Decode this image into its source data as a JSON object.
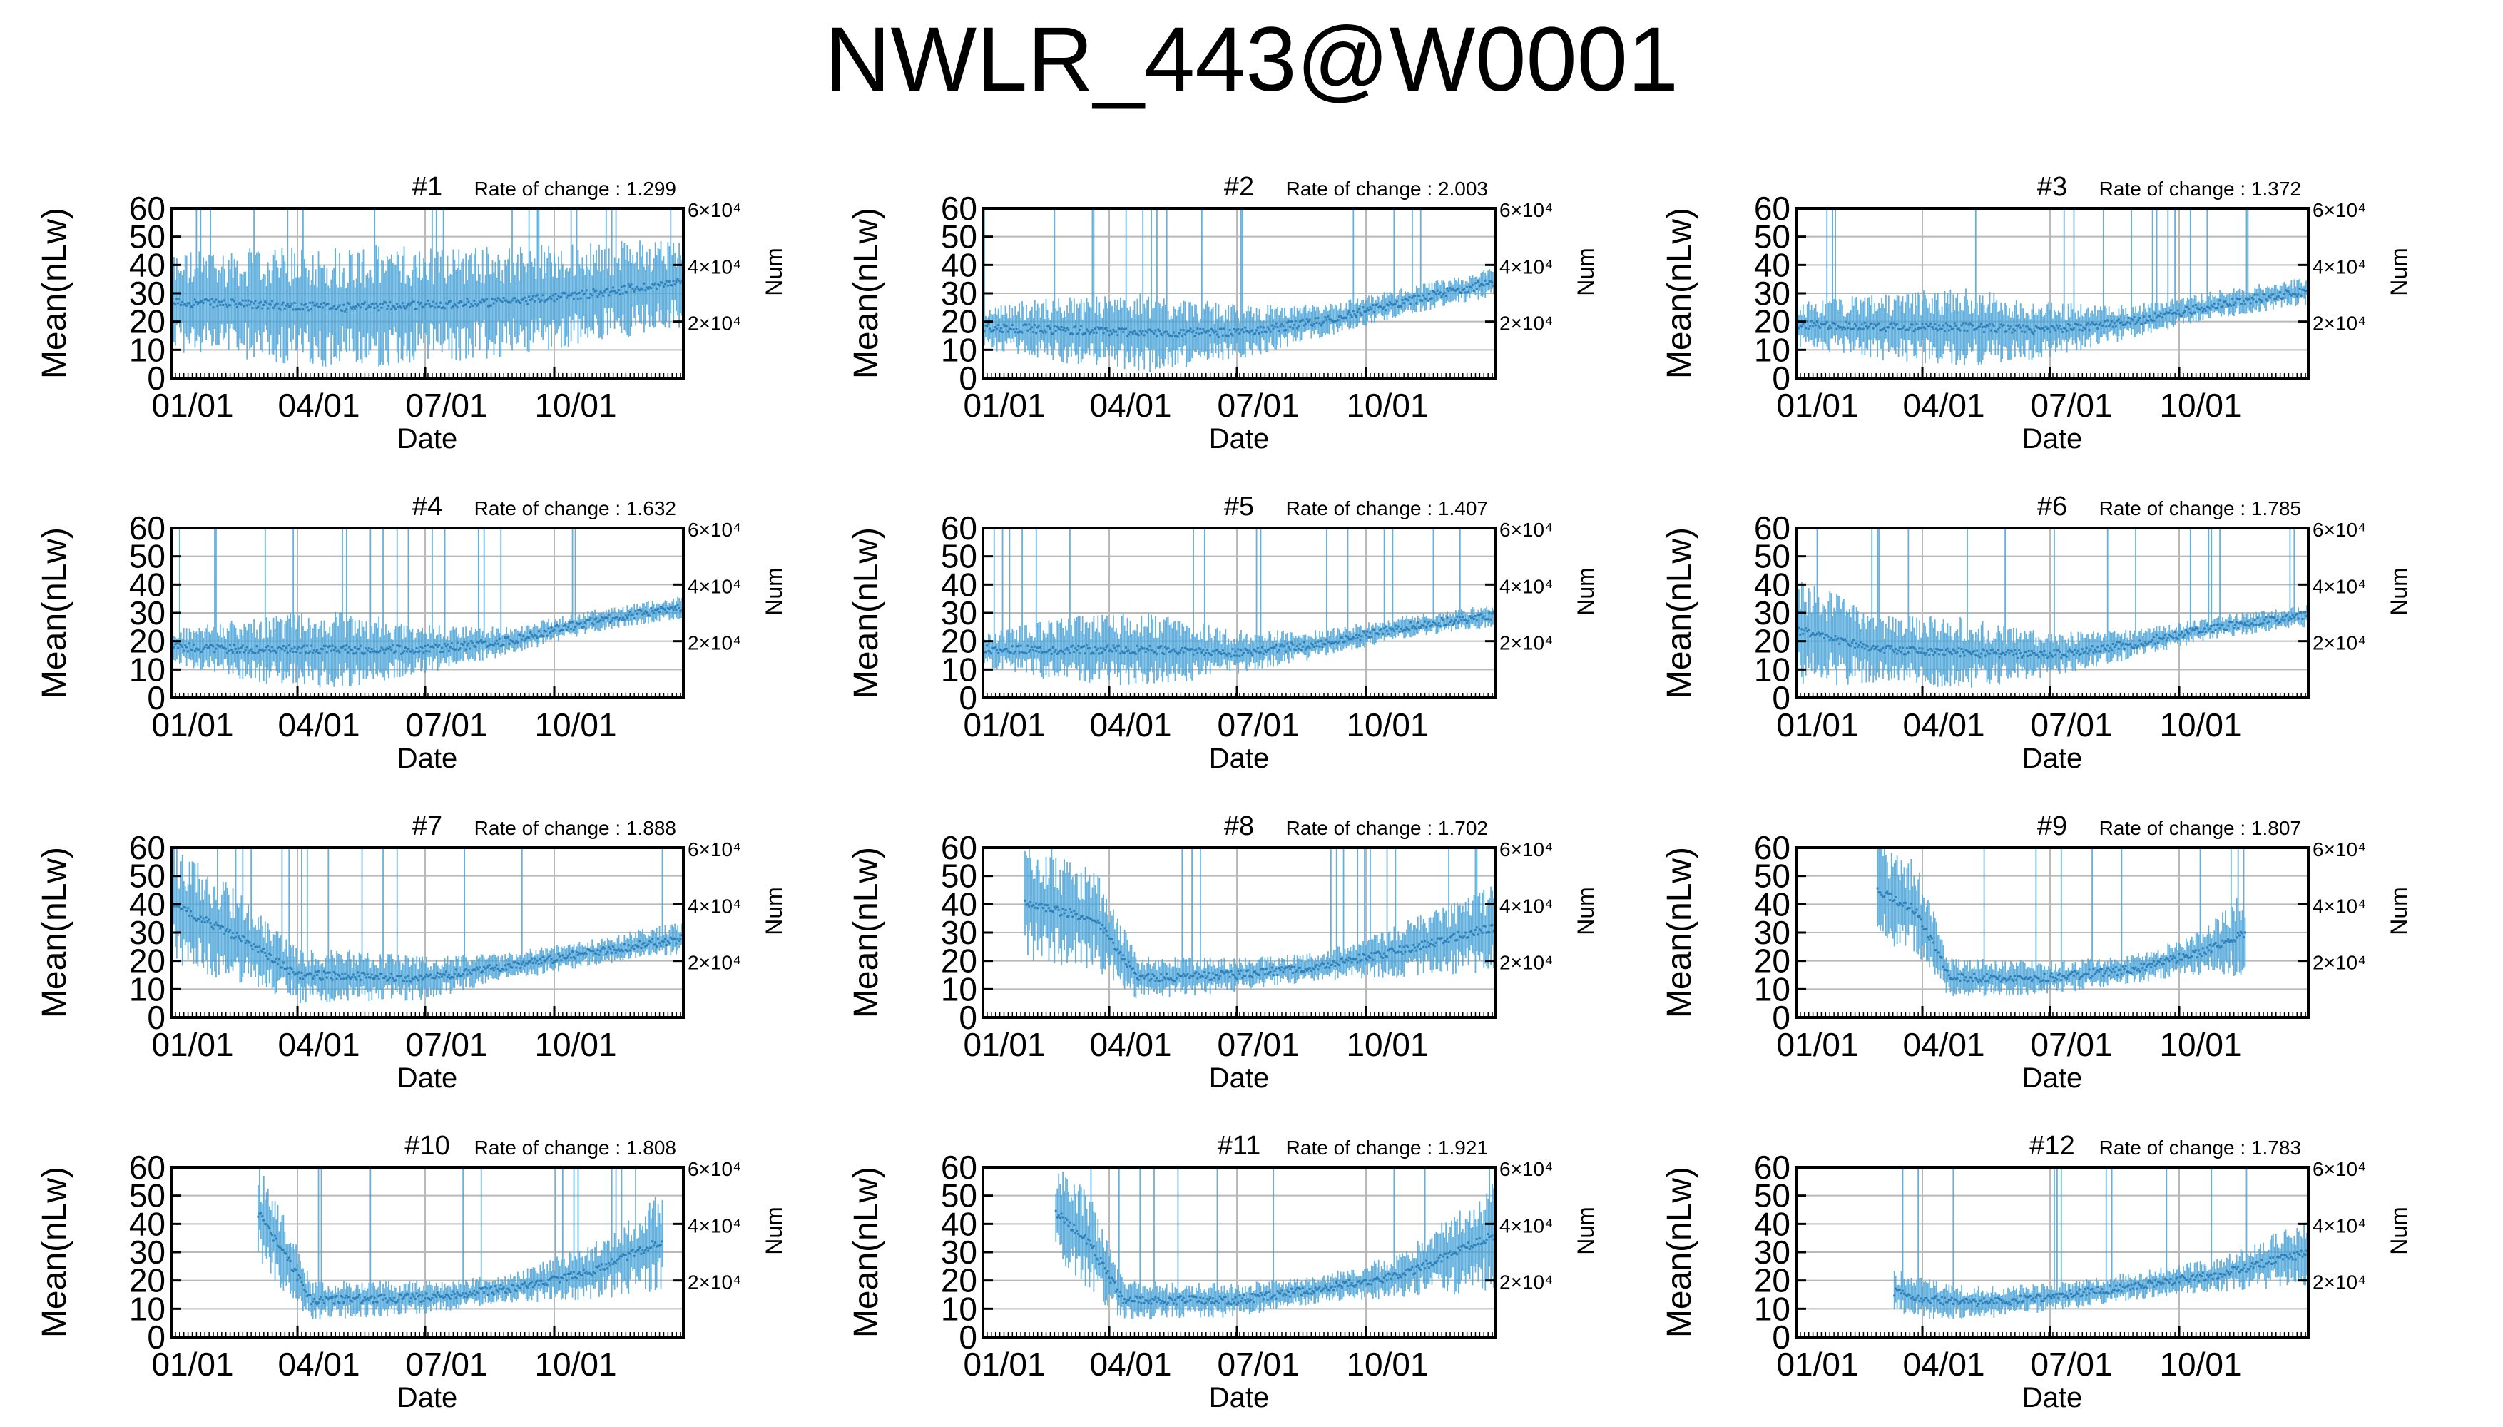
{
  "page": {
    "title": "NWLR_443@W0001"
  },
  "chart_data": [
    {
      "type": "line",
      "title": "#1",
      "rate_label": "Rate of change : 1.299",
      "xlabel": "Date",
      "ylabel": "Mean(nLw)",
      "y2label": "Num",
      "ylim": [
        0,
        60
      ],
      "yticks": [
        0,
        10,
        20,
        30,
        40,
        50,
        60
      ],
      "xticks": [
        "01/01",
        "04/01",
        "07/01",
        "10/01"
      ],
      "y2ticks": [
        {
          "label": "2×10⁴",
          "value": 20000
        },
        {
          "label": "4×10⁴",
          "value": 40000
        },
        {
          "label": "6×10⁴",
          "value": 60000
        }
      ],
      "grid": true,
      "color": "#4aa3d8",
      "profile": {
        "days": [
          0,
          60,
          120,
          180,
          240,
          300,
          365
        ],
        "mean": [
          27,
          26,
          25,
          26,
          27,
          30,
          34
        ],
        "spread": [
          18,
          20,
          22,
          21,
          20,
          18,
          16
        ],
        "start": 0
      }
    },
    {
      "type": "line",
      "title": "#2",
      "rate_label": "Rate of change : 2.003",
      "xlabel": "Date",
      "ylabel": "Mean(nLw)",
      "y2label": "Num",
      "ylim": [
        0,
        60
      ],
      "yticks": [
        0,
        10,
        20,
        30,
        40,
        50,
        60
      ],
      "xticks": [
        "01/01",
        "04/01",
        "07/01",
        "10/01"
      ],
      "y2ticks": [
        {
          "label": "2×10⁴",
          "value": 20000
        },
        {
          "label": "4×10⁴",
          "value": 40000
        },
        {
          "label": "6×10⁴",
          "value": 60000
        }
      ],
      "grid": true,
      "color": "#4aa3d8",
      "profile": {
        "days": [
          0,
          60,
          120,
          180,
          240,
          300,
          365
        ],
        "mean": [
          18,
          17,
          16,
          16,
          20,
          27,
          34
        ],
        "spread": [
          8,
          12,
          14,
          10,
          6,
          5,
          5
        ],
        "start": 0
      }
    },
    {
      "type": "line",
      "title": "#3",
      "rate_label": "Rate of change : 1.372",
      "xlabel": "Date",
      "ylabel": "Mean(nLw)",
      "y2label": "Num",
      "ylim": [
        0,
        60
      ],
      "yticks": [
        0,
        10,
        20,
        30,
        40,
        50,
        60
      ],
      "xticks": [
        "01/01",
        "04/01",
        "07/01",
        "10/01"
      ],
      "y2ticks": [
        {
          "label": "2×10⁴",
          "value": 20000
        },
        {
          "label": "4×10⁴",
          "value": 40000
        },
        {
          "label": "6×10⁴",
          "value": 60000
        }
      ],
      "grid": true,
      "color": "#4aa3d8",
      "profile": {
        "days": [
          0,
          60,
          120,
          180,
          240,
          300,
          365
        ],
        "mean": [
          19,
          18,
          18,
          17,
          20,
          26,
          31
        ],
        "spread": [
          8,
          12,
          14,
          10,
          6,
          5,
          5
        ],
        "start": 0
      }
    },
    {
      "type": "line",
      "title": "#4",
      "rate_label": "Rate of change : 1.632",
      "xlabel": "Date",
      "ylabel": "Mean(nLw)",
      "y2label": "Num",
      "ylim": [
        0,
        60
      ],
      "yticks": [
        0,
        10,
        20,
        30,
        40,
        50,
        60
      ],
      "xticks": [
        "01/01",
        "04/01",
        "07/01",
        "10/01"
      ],
      "y2ticks": [
        {
          "label": "2×10⁴",
          "value": 20000
        },
        {
          "label": "4×10⁴",
          "value": 40000
        },
        {
          "label": "6×10⁴",
          "value": 60000
        }
      ],
      "grid": true,
      "color": "#4aa3d8",
      "profile": {
        "days": [
          0,
          60,
          120,
          180,
          240,
          300,
          365
        ],
        "mean": [
          18,
          17,
          17,
          17,
          20,
          27,
          32
        ],
        "spread": [
          6,
          12,
          14,
          9,
          5,
          4,
          4
        ],
        "start": 0
      }
    },
    {
      "type": "line",
      "title": "#5",
      "rate_label": "Rate of change : 1.407",
      "xlabel": "Date",
      "ylabel": "Mean(nLw)",
      "y2label": "Num",
      "ylim": [
        0,
        60
      ],
      "yticks": [
        0,
        10,
        20,
        30,
        40,
        50,
        60
      ],
      "xticks": [
        "01/01",
        "04/01",
        "07/01",
        "10/01"
      ],
      "y2ticks": [
        {
          "label": "2×10⁴",
          "value": 20000
        },
        {
          "label": "4×10⁴",
          "value": 40000
        },
        {
          "label": "6×10⁴",
          "value": 60000
        }
      ],
      "grid": true,
      "color": "#4aa3d8",
      "profile": {
        "days": [
          0,
          60,
          120,
          180,
          240,
          300,
          365
        ],
        "mean": [
          17,
          17,
          17,
          16,
          19,
          25,
          29
        ],
        "spread": [
          6,
          12,
          13,
          8,
          5,
          4,
          4
        ],
        "start": 0
      }
    },
    {
      "type": "line",
      "title": "#6",
      "rate_label": "Rate of change : 1.785",
      "xlabel": "Date",
      "ylabel": "Mean(nLw)",
      "y2label": "Num",
      "ylim": [
        0,
        60
      ],
      "yticks": [
        0,
        10,
        20,
        30,
        40,
        50,
        60
      ],
      "xticks": [
        "01/01",
        "04/01",
        "07/01",
        "10/01"
      ],
      "y2ticks": [
        {
          "label": "2×10⁴",
          "value": 20000
        },
        {
          "label": "4×10⁴",
          "value": 40000
        },
        {
          "label": "6×10⁴",
          "value": 60000
        }
      ],
      "grid": true,
      "color": "#4aa3d8",
      "profile": {
        "days": [
          0,
          60,
          120,
          180,
          240,
          300,
          365
        ],
        "mean": [
          24,
          17,
          16,
          15,
          19,
          25,
          29
        ],
        "spread": [
          20,
          12,
          13,
          8,
          5,
          4,
          4
        ],
        "start": 0
      }
    },
    {
      "type": "line",
      "title": "#7",
      "rate_label": "Rate of change : 1.888",
      "xlabel": "Date",
      "ylabel": "Mean(nLw)",
      "y2label": "Num",
      "ylim": [
        0,
        60
      ],
      "yticks": [
        0,
        10,
        20,
        30,
        40,
        50,
        60
      ],
      "xticks": [
        "01/01",
        "04/01",
        "07/01",
        "10/01"
      ],
      "y2ticks": [
        {
          "label": "2×10⁴",
          "value": 20000
        },
        {
          "label": "4×10⁴",
          "value": 40000
        },
        {
          "label": "6×10⁴",
          "value": 60000
        }
      ],
      "grid": true,
      "color": "#4aa3d8",
      "profile": {
        "days": [
          0,
          50,
          90,
          180,
          240,
          300,
          365
        ],
        "mean": [
          40,
          28,
          15,
          14,
          18,
          23,
          28
        ],
        "spread": [
          22,
          16,
          10,
          8,
          5,
          5,
          6
        ],
        "start": 0
      }
    },
    {
      "type": "line",
      "title": "#8",
      "rate_label": "Rate of change : 1.702",
      "xlabel": "Date",
      "ylabel": "Mean(nLw)",
      "y2label": "Num",
      "ylim": [
        0,
        60
      ],
      "yticks": [
        0,
        10,
        20,
        30,
        40,
        50,
        60
      ],
      "xticks": [
        "01/01",
        "04/01",
        "07/01",
        "10/01"
      ],
      "y2ticks": [
        {
          "label": "2×10⁴",
          "value": 20000
        },
        {
          "label": "4×10⁴",
          "value": 40000
        },
        {
          "label": "6×10⁴",
          "value": 60000
        }
      ],
      "grid": true,
      "color": "#4aa3d8",
      "profile": {
        "days": [
          30,
          80,
          110,
          180,
          240,
          300,
          365
        ],
        "mean": [
          40,
          35,
          14,
          15,
          18,
          24,
          32
        ],
        "spread": [
          20,
          18,
          8,
          6,
          5,
          10,
          16
        ],
        "start": 30
      }
    },
    {
      "type": "line",
      "title": "#9",
      "rate_label": "Rate of change : 1.807",
      "xlabel": "Date",
      "ylabel": "Mean(nLw)",
      "y2label": "Num",
      "ylim": [
        0,
        60
      ],
      "yticks": [
        0,
        10,
        20,
        30,
        40,
        50,
        60
      ],
      "xticks": [
        "01/01",
        "04/01",
        "07/01",
        "10/01"
      ],
      "y2ticks": [
        {
          "label": "2×10⁴",
          "value": 20000
        },
        {
          "label": "4×10⁴",
          "value": 40000
        },
        {
          "label": "6×10⁴",
          "value": 60000
        }
      ],
      "grid": true,
      "color": "#4aa3d8",
      "profile": {
        "days": [
          58,
          85,
          110,
          180,
          240,
          290,
          320
        ],
        "mean": [
          45,
          38,
          14,
          14,
          17,
          23,
          30
        ],
        "spread": [
          18,
          18,
          7,
          6,
          5,
          8,
          16
        ],
        "start": 58
      }
    },
    {
      "type": "line",
      "title": "#10",
      "rate_label": "Rate of change : 1.808",
      "xlabel": "Date",
      "ylabel": "Mean(nLw)",
      "y2label": "Num",
      "ylim": [
        0,
        60
      ],
      "yticks": [
        0,
        10,
        20,
        30,
        40,
        50,
        60
      ],
      "xticks": [
        "01/01",
        "04/01",
        "07/01",
        "10/01"
      ],
      "y2ticks": [
        {
          "label": "2×10⁴",
          "value": 20000
        },
        {
          "label": "4×10⁴",
          "value": 40000
        },
        {
          "label": "6×10⁴",
          "value": 60000
        }
      ],
      "grid": true,
      "color": "#4aa3d8",
      "profile": {
        "days": [
          62,
          80,
          100,
          180,
          240,
          300,
          350
        ],
        "mean": [
          44,
          30,
          13,
          14,
          17,
          23,
          34
        ],
        "spread": [
          18,
          14,
          7,
          6,
          5,
          10,
          18
        ],
        "start": 62
      }
    },
    {
      "type": "line",
      "title": "#11",
      "rate_label": "Rate of change : 1.921",
      "xlabel": "Date",
      "ylabel": "Mean(nLw)",
      "y2label": "Num",
      "ylim": [
        0,
        60
      ],
      "yticks": [
        0,
        10,
        20,
        30,
        40,
        50,
        60
      ],
      "xticks": [
        "01/01",
        "04/01",
        "07/01",
        "10/01"
      ],
      "y2ticks": [
        {
          "label": "2×10⁴",
          "value": 20000
        },
        {
          "label": "4×10⁴",
          "value": 40000
        },
        {
          "label": "6×10⁴",
          "value": 60000
        }
      ],
      "grid": true,
      "color": "#4aa3d8",
      "profile": {
        "days": [
          52,
          75,
          100,
          180,
          240,
          300,
          365
        ],
        "mean": [
          44,
          34,
          13,
          13,
          17,
          22,
          36
        ],
        "spread": [
          18,
          18,
          7,
          6,
          5,
          8,
          20
        ],
        "start": 52
      }
    },
    {
      "type": "line",
      "title": "#12",
      "rate_label": "Rate of change : 1.783",
      "xlabel": "Date",
      "ylabel": "Mean(nLw)",
      "y2label": "Num",
      "ylim": [
        0,
        60
      ],
      "yticks": [
        0,
        10,
        20,
        30,
        40,
        50,
        60
      ],
      "xticks": [
        "01/01",
        "04/01",
        "07/01",
        "10/01"
      ],
      "y2ticks": [
        {
          "label": "2×10⁴",
          "value": 20000
        },
        {
          "label": "4×10⁴",
          "value": 40000
        },
        {
          "label": "6×10⁴",
          "value": 60000
        }
      ],
      "grid": true,
      "color": "#4aa3d8",
      "profile": {
        "days": [
          70,
          100,
          130,
          180,
          240,
          300,
          365
        ],
        "mean": [
          16,
          13,
          12,
          14,
          18,
          22,
          30
        ],
        "spread": [
          8,
          7,
          6,
          5,
          5,
          6,
          12
        ],
        "start": 70
      }
    }
  ]
}
